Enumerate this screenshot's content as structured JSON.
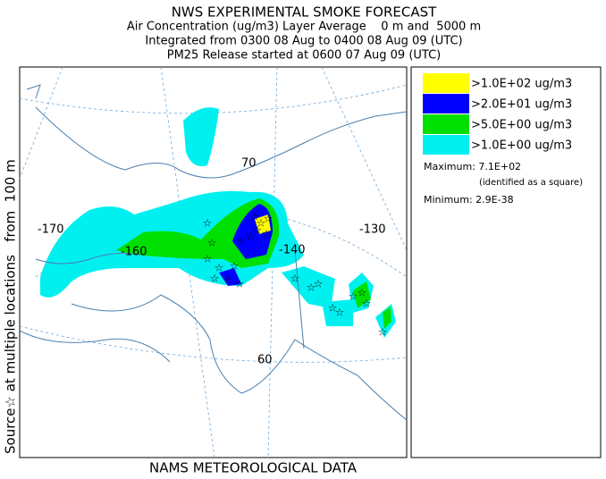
{
  "title": "NWS EXPERIMENTAL SMOKE FORECAST",
  "subtitle_lines": [
    "Air Concentration (ug/m3) Layer Average    0 m and  5000 m",
    "Integrated from 0300 08 Aug to 0400 08 Aug 09 (UTC)",
    "PM25 Release started at 0600 07 Aug 09 (UTC)"
  ],
  "side_label": "Source☆ at multiple locations   from  100 m",
  "footer": "NAMS METEOROLOGICAL DATA",
  "map_labels": {
    "lon_170": "-170",
    "lon_160": "-160",
    "lon_140": "-140",
    "lon_130": "-130",
    "lat_70": "70",
    "lat_60": "60"
  },
  "legend": [
    {
      "label": ">1.0E+02 ug/m3",
      "color": "#ffff00"
    },
    {
      "label": ">2.0E+01 ug/m3",
      "color": "#0000ff"
    },
    {
      "label": ">5.0E+00 ug/m3",
      "color": "#00e000"
    },
    {
      "label": ">1.0E+00 ug/m3",
      "color": "#00f0f0"
    }
  ],
  "maximum": "Maximum: 7.1E+02",
  "maximum_note": "(identified as a square)",
  "minimum": "Minimum: 2.9E-38"
}
